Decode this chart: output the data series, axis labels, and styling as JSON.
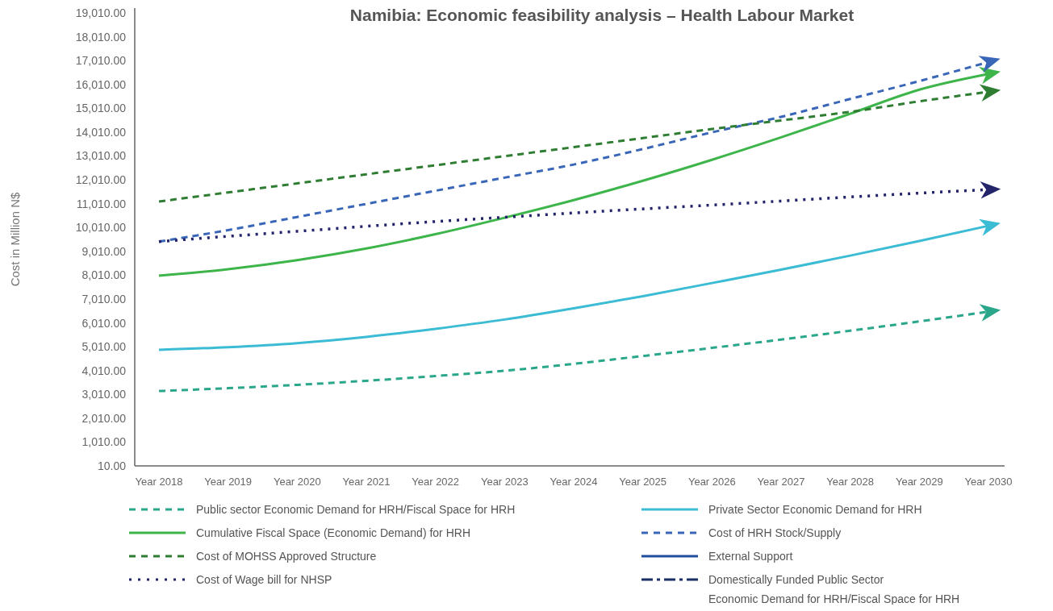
{
  "chart_data": {
    "type": "line",
    "title": "Namibia: Economic feasibility analysis – Health Labour Market",
    "ylabel": "Cost in Million N$",
    "categories": [
      "Year 2018",
      "Year 2019",
      "Year 2020",
      "Year 2021",
      "Year 2022",
      "Year 2023",
      "Year 2024",
      "Year 2025",
      "Year 2026",
      "Year 2027",
      "Year 2028",
      "Year 2029",
      "Year 2030"
    ],
    "ylim": [
      10,
      19010
    ],
    "yticks": [
      {
        "value": 10,
        "label": "10.00"
      },
      {
        "value": 1010,
        "label": "1,010.00"
      },
      {
        "value": 2010,
        "label": "2,010.00"
      },
      {
        "value": 3010,
        "label": "3,010.00"
      },
      {
        "value": 4010,
        "label": "4,010.00"
      },
      {
        "value": 5010,
        "label": "5,010.00"
      },
      {
        "value": 6010,
        "label": "6,010.00"
      },
      {
        "value": 7010,
        "label": "7,010.00"
      },
      {
        "value": 8010,
        "label": "8,010.00"
      },
      {
        "value": 9010,
        "label": "9,010.00"
      },
      {
        "value": 10010,
        "label": "10,010.00"
      },
      {
        "value": 11010,
        "label": "11,010.00"
      },
      {
        "value": 12010,
        "label": "12,010.00"
      },
      {
        "value": 13010,
        "label": "13,010.00"
      },
      {
        "value": 14010,
        "label": "14,010.00"
      },
      {
        "value": 15010,
        "label": "15,010.00"
      },
      {
        "value": 16010,
        "label": "16,010.00"
      },
      {
        "value": 17010,
        "label": "17,010.00"
      },
      {
        "value": 18010,
        "label": "18,010.00"
      },
      {
        "value": 19010,
        "label": "19,010.00"
      }
    ],
    "grid": false,
    "legend": "bottom",
    "marker": "none",
    "series": [
      {
        "name": "Public sector Economic Demand for HRH/Fiscal Space for HRH",
        "color": "#2aa68a",
        "line_style": "dashed",
        "values": [
          3150,
          3270,
          3410,
          3580,
          3780,
          4000,
          4290,
          4620,
          4960,
          5310,
          5680,
          6070,
          6480
        ]
      },
      {
        "name": "Private Sector Economic Demand for HRH",
        "color": "#3bbcd4",
        "line_style": "solid",
        "values": [
          4880,
          4990,
          5160,
          5420,
          5760,
          6150,
          6620,
          7130,
          7680,
          8240,
          8830,
          9440,
          10080
        ]
      },
      {
        "name": "Cumulative Fiscal Space (Economic Demand) for HRH",
        "color": "#3db54a",
        "line_style": "solid",
        "values": [
          7990,
          8260,
          8640,
          9130,
          9730,
          10420,
          11160,
          11970,
          12850,
          13790,
          14780,
          15790,
          16450
        ]
      },
      {
        "name": "Cost of HRH Stock/Supply",
        "color": "#3a66b8",
        "line_style": "dashed",
        "values": [
          9420,
          9900,
          10450,
          11000,
          11550,
          12100,
          12650,
          13300,
          14000,
          14650,
          15400,
          16150,
          16950
        ]
      },
      {
        "name": "Cost of MOHSS Approved Structure",
        "color": "#2e7d32",
        "line_style": "dashed",
        "values": [
          11100,
          11480,
          11860,
          12240,
          12620,
          13000,
          13380,
          13760,
          14140,
          14500,
          14860,
          15300,
          15700
        ]
      },
      {
        "name": "External Support",
        "color": "#1f4e9c",
        "line_style": "solid",
        "values": [
          null,
          null,
          null,
          null,
          null,
          null,
          null,
          null,
          null,
          null,
          null,
          null,
          null
        ]
      },
      {
        "name": "Cost of Wage bill for NHSP",
        "color": "#24246b",
        "line_style": "dotted",
        "values": [
          9420,
          9640,
          9850,
          10060,
          10260,
          10440,
          10620,
          10790,
          10950,
          11120,
          11290,
          11450,
          11600
        ]
      },
      {
        "name": "Domestically Funded Public Sector Economic Demand for HRH/Fiscal Space for HRH",
        "color": "#1a2f66",
        "line_style": "dashdot",
        "values": [
          null,
          null,
          null,
          null,
          null,
          null,
          null,
          null,
          null,
          null,
          null,
          null,
          null
        ]
      }
    ]
  }
}
